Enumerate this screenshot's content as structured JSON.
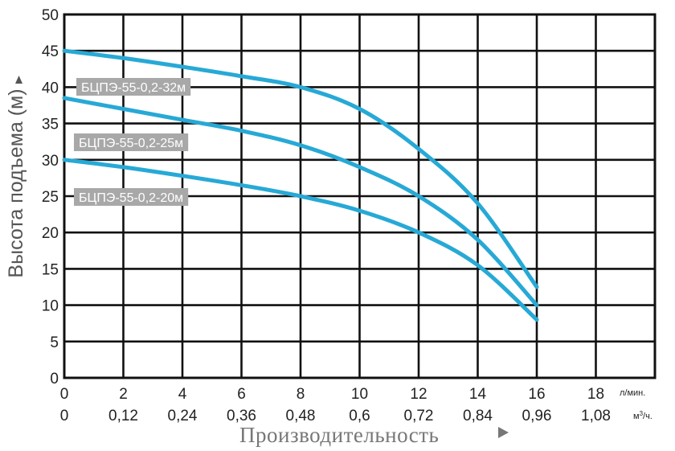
{
  "chart_data": {
    "type": "line",
    "ylabel": "Высота подъема (м)",
    "xlabel": "Производительность",
    "ylim": [
      0,
      50
    ],
    "xlim": [
      0,
      20
    ],
    "y_ticks": [
      0,
      5,
      10,
      15,
      20,
      25,
      30,
      35,
      40,
      45,
      50
    ],
    "x_ticks": [
      0,
      2,
      4,
      6,
      8,
      10,
      12,
      14,
      16,
      18
    ],
    "x_tick_labels": [
      "0",
      "2",
      "4",
      "6",
      "8",
      "10",
      "12",
      "14",
      "16",
      "18"
    ],
    "x_unit": "л/мин.",
    "x2_tick_labels": [
      "0",
      "0,12",
      "0,24",
      "0,36",
      "0,48",
      "0,6",
      "0,72",
      "0,84",
      "0,96",
      "1,08"
    ],
    "x2_unit": "м³/ч.",
    "grid": true,
    "line_color": "#27a9d6",
    "label_bg_color": "#a8a8a8",
    "series": [
      {
        "name": "БЦПЭ-55-0,2-32м",
        "x": [
          0,
          2,
          4,
          6,
          8,
          10,
          12,
          14,
          16
        ],
        "values": [
          45,
          44,
          42.8,
          41.5,
          40,
          37,
          31.5,
          24,
          12.5
        ]
      },
      {
        "name": "БЦПЭ-55-0,2-25м",
        "x": [
          0,
          2,
          4,
          6,
          8,
          10,
          12,
          14,
          16
        ],
        "values": [
          38.5,
          37,
          35.5,
          34,
          32,
          29,
          25,
          19,
          10
        ]
      },
      {
        "name": "БЦПЭ-55-0,2-20м",
        "x": [
          0,
          2,
          4,
          6,
          8,
          10,
          12,
          14,
          16
        ],
        "values": [
          30,
          29,
          27.8,
          26.5,
          25,
          23,
          20,
          15.5,
          8
        ]
      }
    ]
  }
}
